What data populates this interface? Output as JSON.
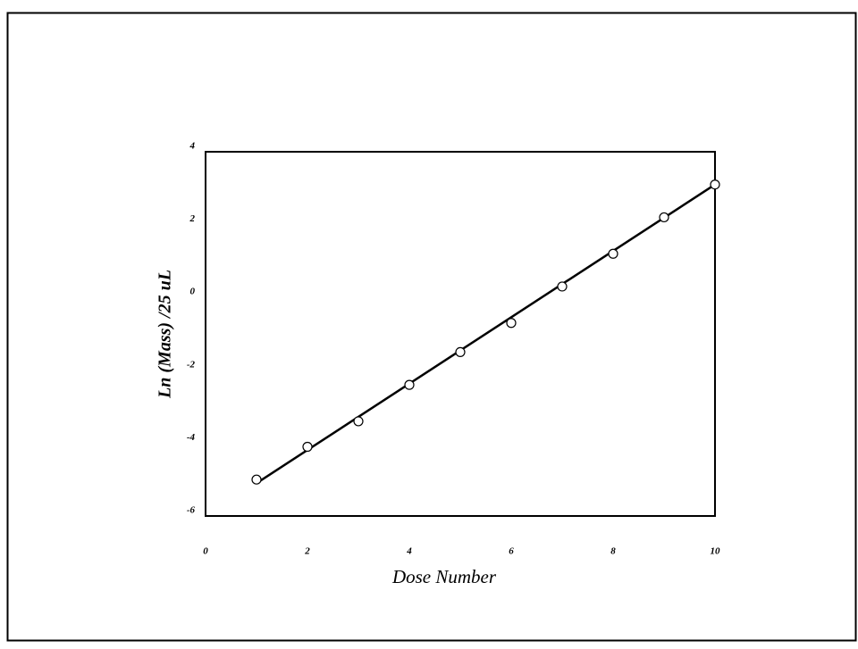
{
  "chart_data": {
    "type": "scatter",
    "x_label": "Dose Number",
    "y_label": "Ln (Mass) /25 uL",
    "x": [
      1,
      2,
      3,
      4,
      5,
      6,
      7,
      8,
      9,
      10
    ],
    "values": [
      -5.0,
      -4.1,
      -3.4,
      -2.4,
      -1.5,
      -0.7,
      0.3,
      1.2,
      2.2,
      3.1
    ],
    "color": "#000000",
    "fit": {
      "x": [
        1,
        10
      ],
      "values": [
        -5.1,
        3.1
      ]
    },
    "xlim": [
      0,
      10
    ],
    "xticks": [
      0,
      2,
      4,
      6,
      8,
      10
    ],
    "ylim": [
      -6,
      4
    ],
    "yticks": [
      -6,
      -4,
      -2,
      0,
      2,
      4
    ],
    "grid": false
  }
}
